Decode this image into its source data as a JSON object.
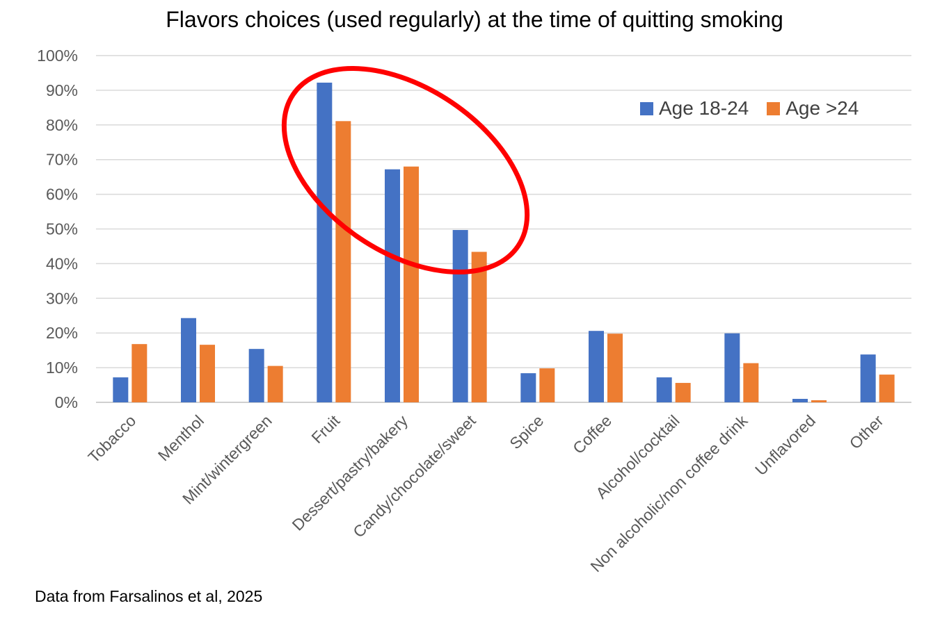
{
  "chart_data": {
    "type": "bar",
    "title": "Flavors choices (used regularly) at the time of quitting smoking",
    "categories": [
      "Tobacco",
      "Menthol",
      "Mint/wintergreen",
      "Fruit",
      "Dessert/pastry/bakery",
      "Candy/chocolate/sweet",
      "Spice",
      "Coffee",
      "Alcohol/cocktail",
      "Non alcoholic/non coffee drink",
      "Unflavored",
      "Other"
    ],
    "series": [
      {
        "name": "Age 18-24",
        "color": "#4472C4",
        "values": [
          7.2,
          24.3,
          15.4,
          92.2,
          67.2,
          49.7,
          8.4,
          20.6,
          7.2,
          19.9,
          1.0,
          13.8
        ]
      },
      {
        "name": "Age >24",
        "color": "#ED7D31",
        "values": [
          16.8,
          16.6,
          10.5,
          81.1,
          68.0,
          43.4,
          9.8,
          19.8,
          5.6,
          11.3,
          0.6,
          8.0
        ]
      }
    ],
    "y_ticks": [
      "0%",
      "10%",
      "20%",
      "30%",
      "40%",
      "50%",
      "60%",
      "70%",
      "80%",
      "90%",
      "100%"
    ],
    "ylim": [
      0,
      100
    ],
    "xlabel": "",
    "ylabel": "",
    "grid": true,
    "legend_position": "top-right",
    "annotation": {
      "shape": "ellipse",
      "color": "#FF0000",
      "highlights": [
        "Fruit",
        "Dessert/pastry/bakery",
        "Candy/chocolate/sweet"
      ]
    },
    "source_note": "Data from Farsalinos et al, 2025"
  }
}
